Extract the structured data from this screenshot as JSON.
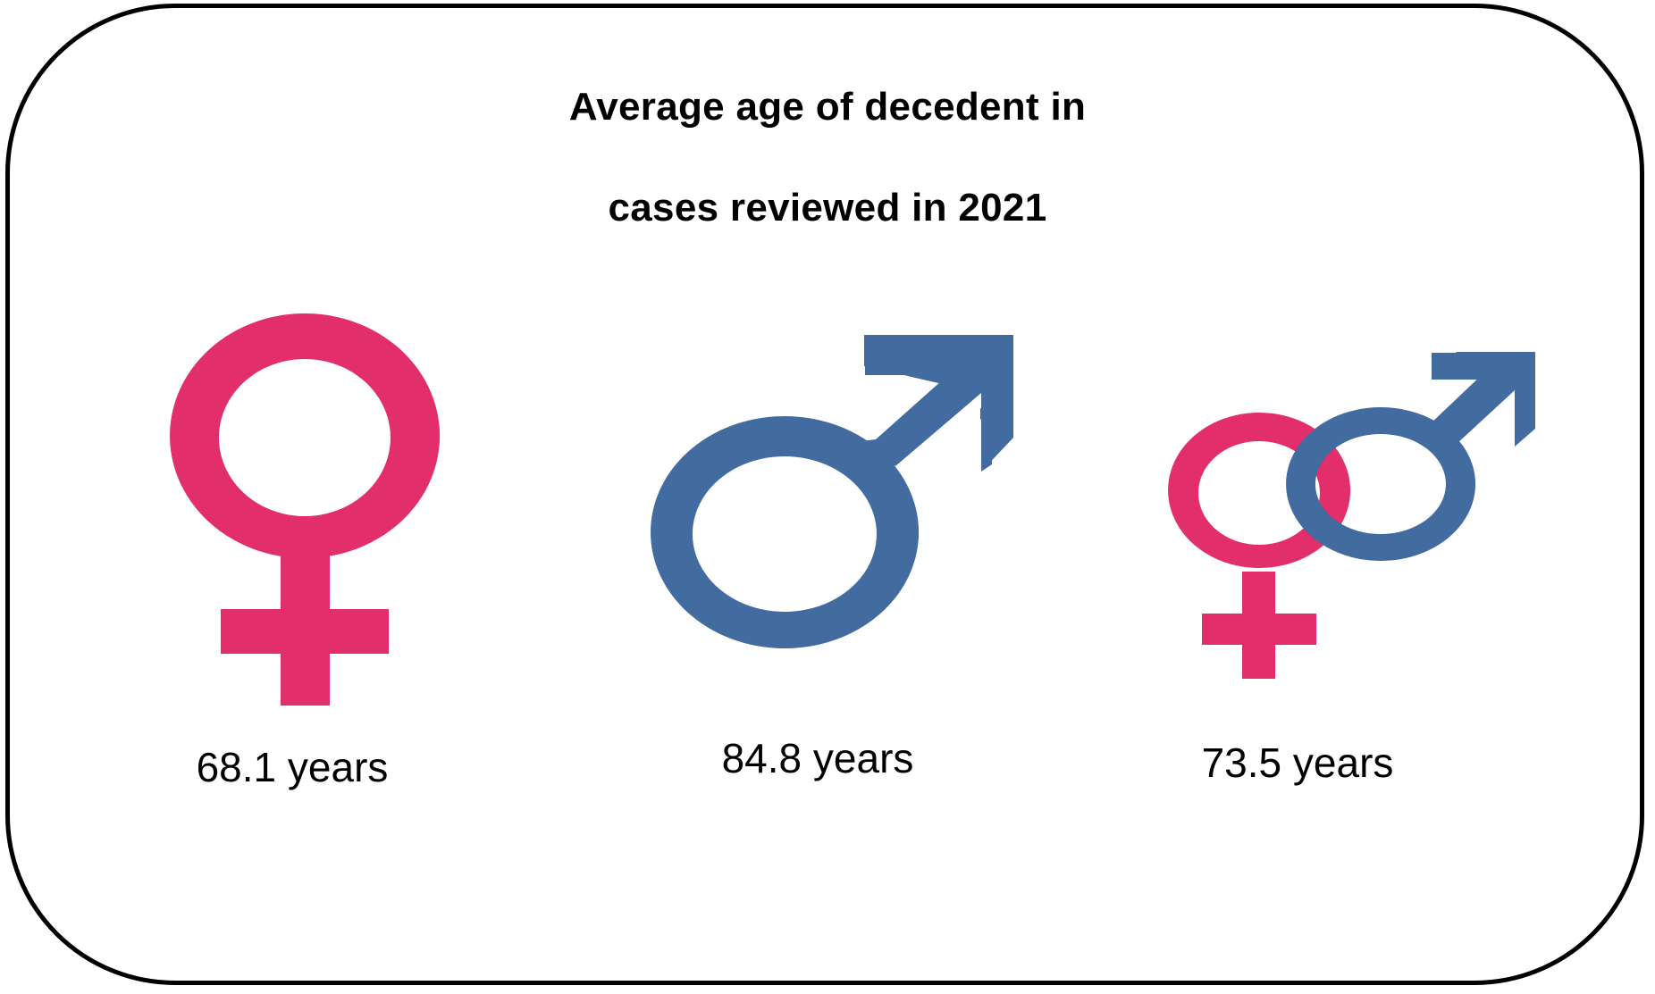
{
  "title": {
    "line1": "Average age of decedent in",
    "line2": "cases reviewed in 2021"
  },
  "groups": [
    {
      "icon": "female-symbol-icon",
      "value": "68.1 years"
    },
    {
      "icon": "male-symbol-icon",
      "value": "84.8 years"
    },
    {
      "icon": "female-male-symbol-icon",
      "value": "73.5 years"
    }
  ],
  "colors": {
    "female": "#e22e6b",
    "male": "#426ba0",
    "border": "#000000"
  }
}
